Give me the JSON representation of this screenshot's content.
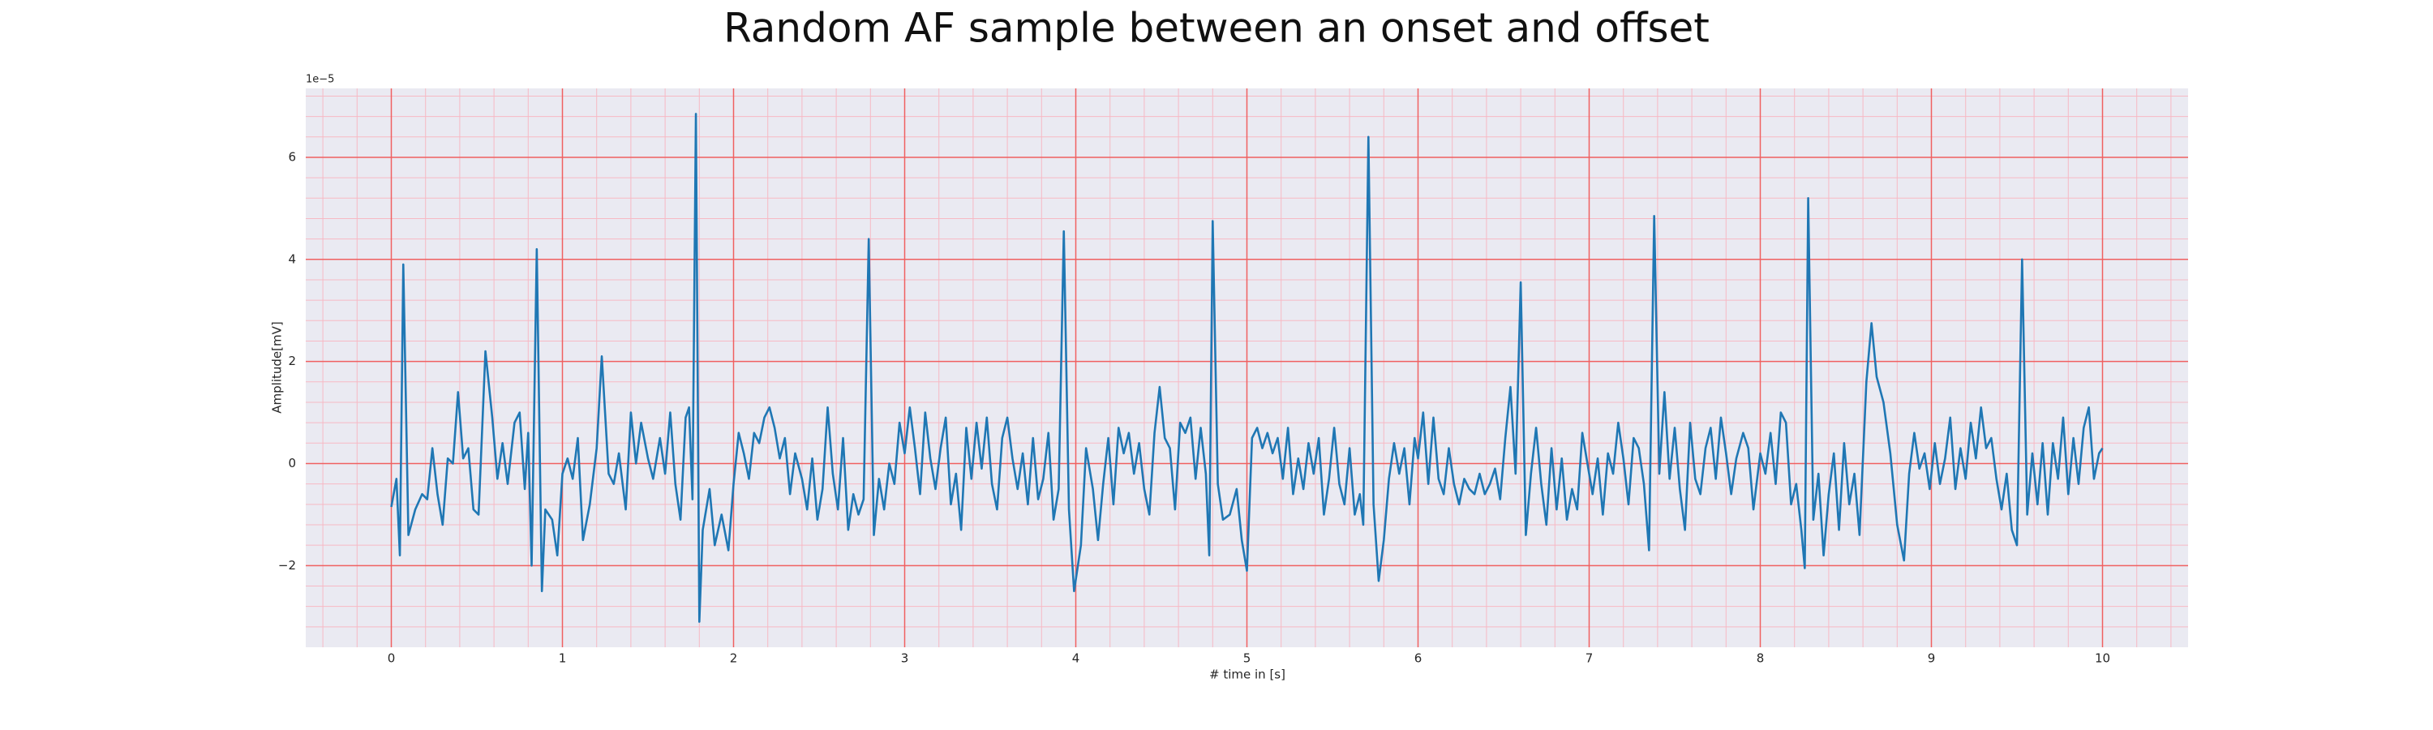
{
  "chart_data": {
    "type": "line",
    "title": "Random AF sample between an onset and offset",
    "xlabel": "# time in [s]",
    "ylabel": "Amplitude[mV]",
    "y_offset_text": "1e−5",
    "color": "#1f77b4",
    "grid": true,
    "xlim": [
      -0.5,
      10.5
    ],
    "ylim": [
      -3.6,
      7.35
    ],
    "xticks": [
      0,
      1,
      2,
      3,
      4,
      5,
      6,
      7,
      8,
      9,
      10
    ],
    "yticks": [
      {
        "value": -2,
        "label": "−2"
      },
      0,
      2,
      4,
      6
    ],
    "xminorticks": [
      -0.4,
      -0.2,
      0.2,
      0.4,
      0.6,
      0.8,
      1.2,
      1.4,
      1.6,
      1.8,
      2.2,
      2.4,
      2.6,
      2.8,
      3.2,
      3.4,
      3.6,
      3.8,
      4.2,
      4.4,
      4.6,
      4.8,
      5.2,
      5.4,
      5.6,
      5.8,
      6.2,
      6.4,
      6.6,
      6.8,
      7.2,
      7.4,
      7.6,
      7.8,
      8.2,
      8.4,
      8.6,
      8.8,
      9.2,
      9.4,
      9.6,
      9.8,
      10.2,
      10.4
    ],
    "yminorticks": [
      -3.2,
      -2.8,
      -2.4,
      -1.6,
      -1.2,
      -0.8,
      -0.4,
      0.4,
      0.8,
      1.2,
      1.6,
      2.4,
      2.8,
      3.2,
      3.6,
      4.4,
      4.8,
      5.2,
      5.6,
      6.4,
      6.8,
      7.2
    ],
    "x": [
      0,
      0.03,
      0.05,
      0.07,
      0.1,
      0.14,
      0.18,
      0.21,
      0.24,
      0.27,
      0.3,
      0.33,
      0.36,
      0.39,
      0.42,
      0.45,
      0.48,
      0.51,
      0.55,
      0.59,
      0.62,
      0.65,
      0.68,
      0.72,
      0.75,
      0.78,
      0.8,
      0.82,
      0.85,
      0.88,
      0.9,
      0.94,
      0.97,
      1.0,
      1.03,
      1.06,
      1.09,
      1.12,
      1.16,
      1.2,
      1.23,
      1.27,
      1.3,
      1.33,
      1.37,
      1.4,
      1.43,
      1.46,
      1.5,
      1.53,
      1.57,
      1.6,
      1.63,
      1.66,
      1.69,
      1.72,
      1.74,
      1.76,
      1.78,
      1.8,
      1.82,
      1.86,
      1.89,
      1.93,
      1.97,
      2.0,
      2.03,
      2.06,
      2.09,
      2.12,
      2.15,
      2.18,
      2.21,
      2.24,
      2.27,
      2.3,
      2.33,
      2.36,
      2.4,
      2.43,
      2.46,
      2.49,
      2.52,
      2.55,
      2.58,
      2.61,
      2.64,
      2.67,
      2.7,
      2.73,
      2.76,
      2.79,
      2.82,
      2.85,
      2.88,
      2.91,
      2.94,
      2.97,
      3.0,
      3.03,
      3.06,
      3.09,
      3.12,
      3.15,
      3.18,
      3.21,
      3.24,
      3.27,
      3.3,
      3.33,
      3.36,
      3.39,
      3.42,
      3.45,
      3.48,
      3.51,
      3.54,
      3.57,
      3.6,
      3.63,
      3.66,
      3.69,
      3.72,
      3.75,
      3.78,
      3.81,
      3.84,
      3.87,
      3.9,
      3.93,
      3.96,
      3.99,
      4.03,
      4.06,
      4.1,
      4.13,
      4.16,
      4.19,
      4.22,
      4.25,
      4.28,
      4.31,
      4.34,
      4.37,
      4.4,
      4.43,
      4.46,
      4.49,
      4.52,
      4.55,
      4.58,
      4.61,
      4.64,
      4.67,
      4.7,
      4.73,
      4.76,
      4.78,
      4.8,
      4.83,
      4.86,
      4.9,
      4.94,
      4.97,
      5.0,
      5.03,
      5.06,
      5.09,
      5.12,
      5.15,
      5.18,
      5.21,
      5.24,
      5.27,
      5.3,
      5.33,
      5.36,
      5.39,
      5.42,
      5.45,
      5.48,
      5.51,
      5.54,
      5.57,
      5.6,
      5.63,
      5.66,
      5.68,
      5.71,
      5.74,
      5.77,
      5.8,
      5.83,
      5.86,
      5.89,
      5.92,
      5.95,
      5.98,
      6.0,
      6.03,
      6.06,
      6.09,
      6.12,
      6.15,
      6.18,
      6.21,
      6.24,
      6.27,
      6.3,
      6.33,
      6.36,
      6.39,
      6.42,
      6.45,
      6.48,
      6.51,
      6.54,
      6.57,
      6.6,
      6.63,
      6.66,
      6.69,
      6.72,
      6.75,
      6.78,
      6.81,
      6.84,
      6.87,
      6.9,
      6.93,
      6.96,
      6.99,
      7.02,
      7.05,
      7.08,
      7.11,
      7.14,
      7.17,
      7.2,
      7.23,
      7.26,
      7.29,
      7.32,
      7.35,
      7.38,
      7.41,
      7.44,
      7.47,
      7.5,
      7.53,
      7.56,
      7.59,
      7.62,
      7.65,
      7.68,
      7.71,
      7.74,
      7.77,
      7.8,
      7.83,
      7.86,
      7.9,
      7.93,
      7.96,
      8.0,
      8.03,
      8.06,
      8.09,
      8.12,
      8.15,
      8.18,
      8.21,
      8.24,
      8.26,
      8.28,
      8.31,
      8.34,
      8.37,
      8.4,
      8.43,
      8.46,
      8.49,
      8.52,
      8.55,
      8.58,
      8.62,
      8.65,
      8.68,
      8.72,
      8.76,
      8.8,
      8.84,
      8.87,
      8.9,
      8.93,
      8.96,
      8.99,
      9.02,
      9.05,
      9.08,
      9.11,
      9.14,
      9.17,
      9.2,
      9.23,
      9.26,
      9.29,
      9.32,
      9.35,
      9.38,
      9.41,
      9.44,
      9.47,
      9.5,
      9.53,
      9.56,
      9.59,
      9.62,
      9.65,
      9.68,
      9.71,
      9.74,
      9.77,
      9.8,
      9.83,
      9.86,
      9.89,
      9.92,
      9.95,
      9.98,
      10.0
    ],
    "values": [
      -0.85,
      -0.3,
      -1.8,
      3.9,
      -1.4,
      -0.9,
      -0.6,
      -0.7,
      0.3,
      -0.6,
      -1.2,
      0.1,
      0.0,
      1.4,
      0.1,
      0.3,
      -0.9,
      -1.0,
      2.2,
      0.9,
      -0.3,
      0.4,
      -0.4,
      0.8,
      1.0,
      -0.5,
      0.6,
      -2.0,
      4.2,
      -2.5,
      -0.9,
      -1.1,
      -1.8,
      -0.2,
      0.1,
      -0.3,
      0.5,
      -1.5,
      -0.8,
      0.3,
      2.1,
      -0.2,
      -0.4,
      0.2,
      -0.9,
      1.0,
      0.0,
      0.8,
      0.1,
      -0.3,
      0.5,
      -0.2,
      1.0,
      -0.4,
      -1.1,
      0.9,
      1.1,
      -0.7,
      6.85,
      -3.1,
      -1.3,
      -0.5,
      -1.6,
      -1.0,
      -1.7,
      -0.4,
      0.6,
      0.2,
      -0.3,
      0.6,
      0.4,
      0.9,
      1.1,
      0.7,
      0.1,
      0.5,
      -0.6,
      0.2,
      -0.3,
      -0.9,
      0.1,
      -1.1,
      -0.5,
      1.1,
      -0.2,
      -0.9,
      0.5,
      -1.3,
      -0.6,
      -1.0,
      -0.7,
      4.4,
      -1.4,
      -0.3,
      -0.9,
      0.0,
      -0.4,
      0.8,
      0.2,
      1.1,
      0.3,
      -0.6,
      1.0,
      0.1,
      -0.5,
      0.3,
      0.9,
      -0.8,
      -0.2,
      -1.3,
      0.7,
      -0.3,
      0.8,
      -0.1,
      0.9,
      -0.4,
      -0.9,
      0.5,
      0.9,
      0.1,
      -0.5,
      0.2,
      -0.8,
      0.5,
      -0.7,
      -0.3,
      0.6,
      -1.1,
      -0.5,
      4.55,
      -0.9,
      -2.5,
      -1.6,
      0.3,
      -0.5,
      -1.5,
      -0.4,
      0.5,
      -0.8,
      0.7,
      0.2,
      0.6,
      -0.2,
      0.4,
      -0.5,
      -1.0,
      0.6,
      1.5,
      0.5,
      0.3,
      -0.9,
      0.8,
      0.6,
      0.9,
      -0.3,
      0.7,
      -0.2,
      -1.8,
      4.75,
      -0.4,
      -1.1,
      -1.0,
      -0.5,
      -1.5,
      -2.1,
      0.5,
      0.7,
      0.3,
      0.6,
      0.2,
      0.5,
      -0.3,
      0.7,
      -0.6,
      0.1,
      -0.5,
      0.4,
      -0.2,
      0.5,
      -1.0,
      -0.3,
      0.7,
      -0.4,
      -0.8,
      0.3,
      -1.0,
      -0.6,
      -1.2,
      6.4,
      -0.8,
      -2.3,
      -1.5,
      -0.3,
      0.4,
      -0.2,
      0.3,
      -0.8,
      0.5,
      0.1,
      1.0,
      -0.4,
      0.9,
      -0.3,
      -0.6,
      0.3,
      -0.4,
      -0.8,
      -0.3,
      -0.5,
      -0.6,
      -0.2,
      -0.6,
      -0.4,
      -0.1,
      -0.7,
      0.5,
      1.5,
      -0.2,
      3.55,
      -1.4,
      -0.2,
      0.7,
      -0.4,
      -1.2,
      0.3,
      -0.9,
      0.1,
      -1.1,
      -0.5,
      -0.9,
      0.6,
      0.0,
      -0.6,
      0.1,
      -1.0,
      0.2,
      -0.2,
      0.8,
      0.1,
      -0.8,
      0.5,
      0.3,
      -0.4,
      -1.7,
      4.85,
      -0.2,
      1.4,
      -0.3,
      0.7,
      -0.5,
      -1.3,
      0.8,
      -0.3,
      -0.6,
      0.3,
      0.7,
      -0.3,
      0.9,
      0.2,
      -0.6,
      0.1,
      0.6,
      0.3,
      -0.9,
      0.2,
      -0.2,
      0.6,
      -0.4,
      1.0,
      0.8,
      -0.8,
      -0.4,
      -1.3,
      -2.05,
      5.2,
      -1.1,
      -0.2,
      -1.8,
      -0.6,
      0.2,
      -1.3,
      0.4,
      -0.8,
      -0.2,
      -1.4,
      1.6,
      2.75,
      1.7,
      1.2,
      0.2,
      -1.2,
      -1.9,
      -0.2,
      0.6,
      -0.1,
      0.2,
      -0.5,
      0.4,
      -0.4,
      0.1,
      0.9,
      -0.5,
      0.3,
      -0.3,
      0.8,
      0.1,
      1.1,
      0.3,
      0.5,
      -0.3,
      -0.9,
      -0.2,
      -1.3,
      -1.6,
      4.0,
      -1.0,
      0.2,
      -0.8,
      0.4,
      -1.0,
      0.4,
      -0.3,
      0.9,
      -0.6,
      0.5,
      -0.4,
      0.7,
      1.1,
      -0.3,
      0.2,
      0.3
    ]
  }
}
